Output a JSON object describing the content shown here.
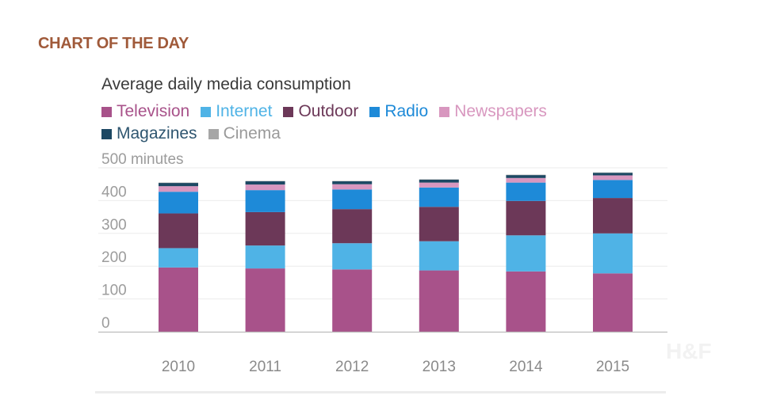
{
  "header": {
    "section_label": "CHART OF THE DAY"
  },
  "watermark": "H&F",
  "chart_data": {
    "type": "bar",
    "stacked": true,
    "title": "Average daily media consumption",
    "ylabel": "",
    "ytick_unit": "minutes",
    "xlabel": "",
    "categories": [
      "2010",
      "2011",
      "2012",
      "2013",
      "2014",
      "2015"
    ],
    "yticks": [
      0,
      100,
      200,
      300,
      400,
      500
    ],
    "ylim": [
      0,
      500
    ],
    "grid": true,
    "legend": "top-left",
    "series": [
      {
        "name": "Television",
        "color": "#a8528a",
        "values": [
          196,
          193,
          190,
          187,
          184,
          178
        ]
      },
      {
        "name": "Internet",
        "color": "#4fb3e6",
        "values": [
          59,
          70,
          80,
          89,
          110,
          122
        ]
      },
      {
        "name": "Outdoor",
        "color": "#6c3858",
        "values": [
          106,
          102,
          104,
          105,
          105,
          108
        ]
      },
      {
        "name": "Radio",
        "color": "#1e8ad8",
        "values": [
          66,
          67,
          60,
          59,
          56,
          55
        ]
      },
      {
        "name": "Newspapers",
        "color": "#d897bf",
        "values": [
          17,
          17,
          16,
          15,
          14,
          14
        ]
      },
      {
        "name": "Magazines",
        "color": "#1c4863",
        "values": [
          10,
          10,
          9,
          9,
          9,
          8
        ]
      },
      {
        "name": "Cinema",
        "color": "#a6a6a6",
        "values": [
          1,
          1,
          1,
          1,
          1,
          1
        ]
      }
    ]
  }
}
